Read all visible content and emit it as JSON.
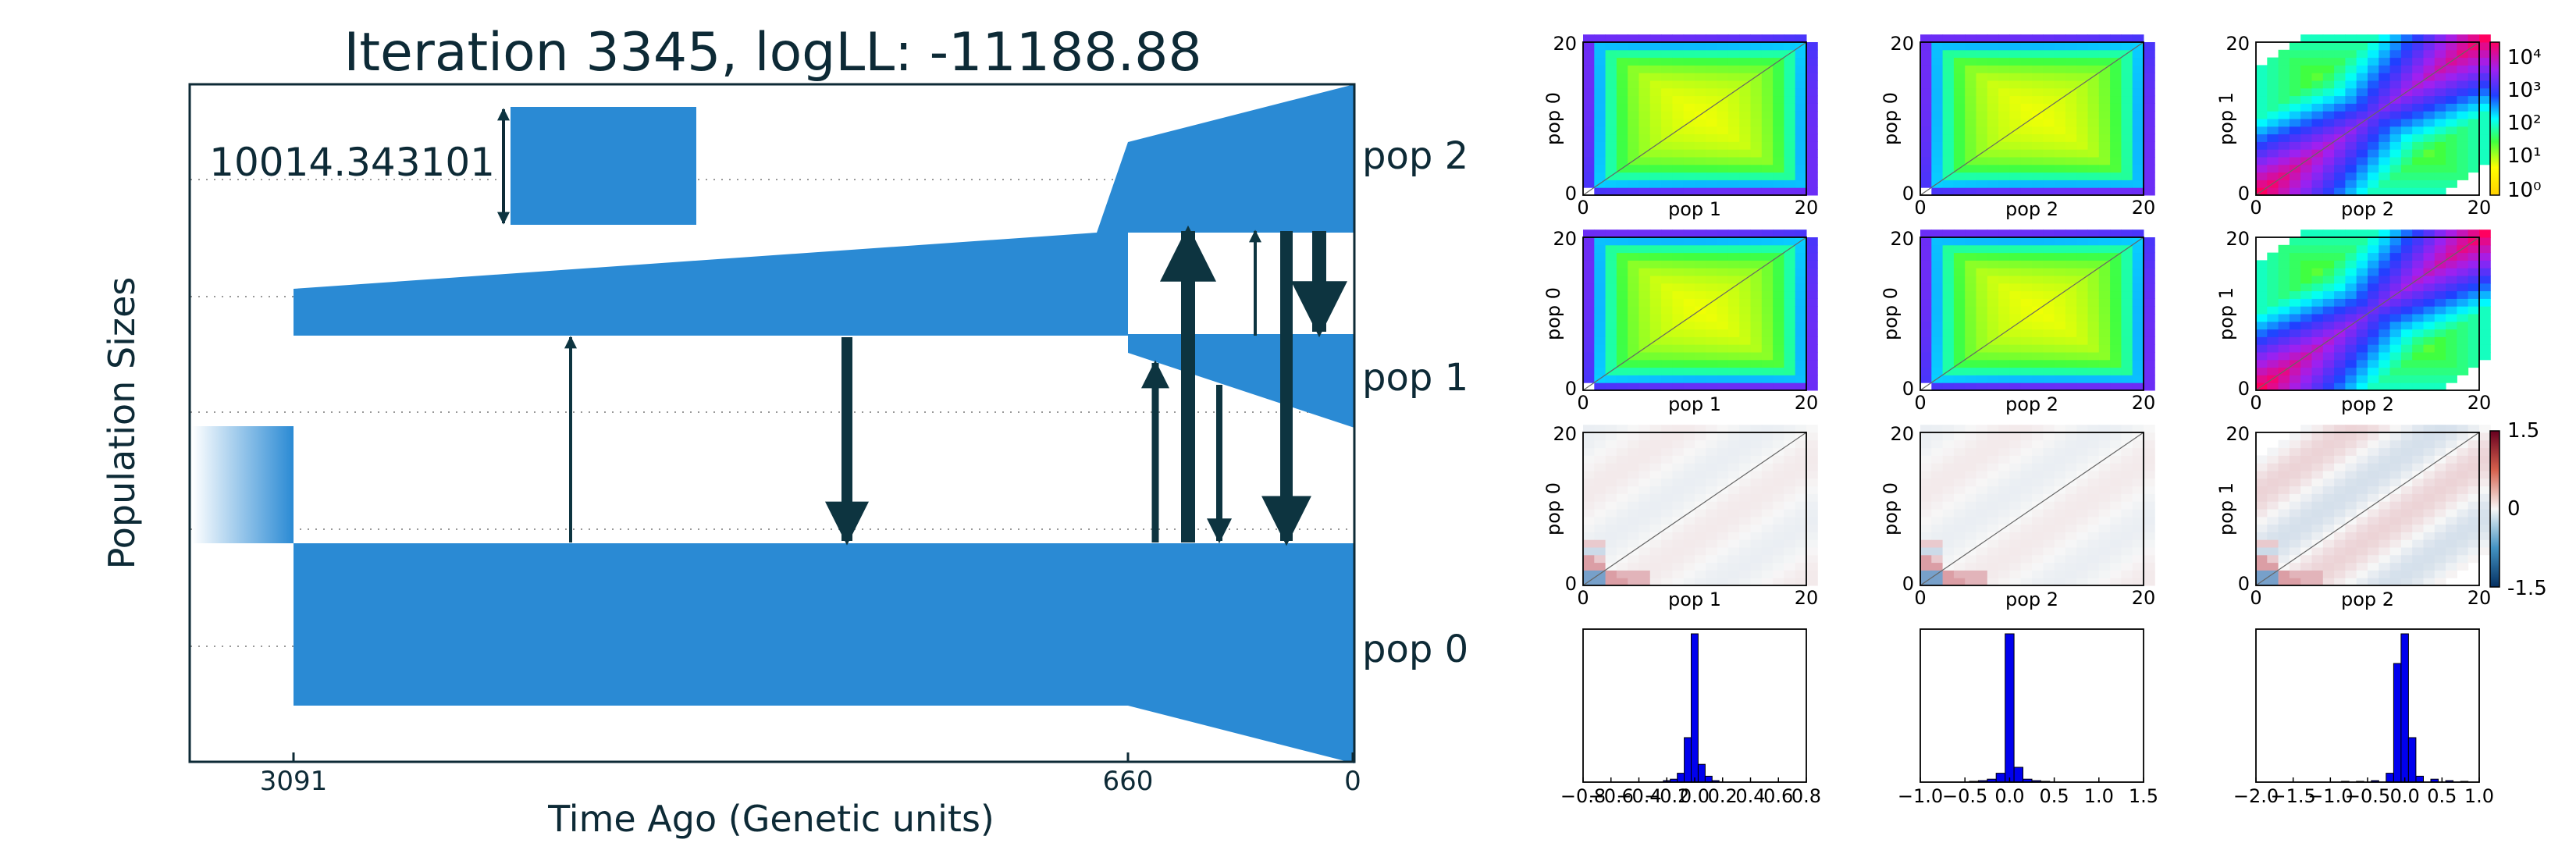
{
  "figure": {
    "title": "Iteration 3345, logLL:  -11188.88",
    "ylabel": "Population Sizes",
    "xlabel": "Time Ago (Genetic units)",
    "scale_label": "10014.343101",
    "xticks": [
      "3091",
      "660",
      "0"
    ],
    "pop_labels": [
      "pop 2",
      "pop 1",
      "pop 0"
    ]
  },
  "colors": {
    "pop_fill": "#2a8ad4",
    "arrow": "#0d3440",
    "text": "#0d2a36"
  },
  "chart_data": [
    {
      "type": "heatmap",
      "role": "demography model (population size through time, migration arrows)",
      "title": "Iteration 3345, logLL:  -11188.88",
      "xlabel": "Time Ago (Genetic units)",
      "ylabel": "Population Sizes",
      "x_ticks": [
        3091,
        660,
        0
      ],
      "size_scale_bar": 10014.343101,
      "populations": [
        "pop 2",
        "pop 1",
        "pop 0"
      ],
      "events": [
        {
          "time": 3091,
          "description": "split from ancestral population"
        },
        {
          "time": 660,
          "description": "split of pop 2 from pop 1"
        }
      ]
    },
    {
      "type": "heatmap",
      "role": "observed SFS",
      "panel": [
        0,
        0
      ],
      "xlabel": "pop 1",
      "ylabel": "pop 0",
      "xlim": [
        0,
        20
      ],
      "ylim": [
        0,
        20
      ],
      "color_scale": "log",
      "colorbar_ticks": [
        "10^0",
        "10^1",
        "10^2",
        "10^3",
        "10^4"
      ]
    },
    {
      "type": "heatmap",
      "role": "observed SFS",
      "panel": [
        0,
        1
      ],
      "xlabel": "pop 2",
      "ylabel": "pop 0",
      "xlim": [
        0,
        20
      ],
      "ylim": [
        0,
        20
      ]
    },
    {
      "type": "heatmap",
      "role": "observed SFS",
      "panel": [
        0,
        2
      ],
      "xlabel": "pop 2",
      "ylabel": "pop 1",
      "xlim": [
        0,
        20
      ],
      "ylim": [
        0,
        20
      ]
    },
    {
      "type": "heatmap",
      "role": "model SFS",
      "panel": [
        1,
        0
      ],
      "xlabel": "pop 1",
      "ylabel": "pop 0",
      "xlim": [
        0,
        20
      ],
      "ylim": [
        0,
        20
      ]
    },
    {
      "type": "heatmap",
      "role": "model SFS",
      "panel": [
        1,
        1
      ],
      "xlabel": "pop 2",
      "ylabel": "pop 0",
      "xlim": [
        0,
        20
      ],
      "ylim": [
        0,
        20
      ]
    },
    {
      "type": "heatmap",
      "role": "model SFS",
      "panel": [
        1,
        2
      ],
      "xlabel": "pop 2",
      "ylabel": "pop 1",
      "xlim": [
        0,
        20
      ],
      "ylim": [
        0,
        20
      ]
    },
    {
      "type": "heatmap",
      "role": "residuals",
      "panel": [
        2,
        0
      ],
      "xlabel": "pop 1",
      "ylabel": "pop 0",
      "xlim": [
        0,
        20
      ],
      "ylim": [
        0,
        20
      ],
      "color_range": [
        -1.5,
        1.5
      ],
      "colorbar_ticks": [
        "1.5",
        "0",
        "-1.5"
      ]
    },
    {
      "type": "heatmap",
      "role": "residuals",
      "panel": [
        2,
        1
      ],
      "xlabel": "pop 2",
      "ylabel": "pop 0",
      "xlim": [
        0,
        20
      ],
      "ylim": [
        0,
        20
      ]
    },
    {
      "type": "heatmap",
      "role": "residuals",
      "panel": [
        2,
        2
      ],
      "xlabel": "pop 2",
      "ylabel": "pop 1",
      "xlim": [
        0,
        20
      ],
      "ylim": [
        0,
        20
      ]
    },
    {
      "type": "bar",
      "role": "residual histogram",
      "panel": [
        3,
        0
      ],
      "xlim": [
        -0.8,
        0.8
      ],
      "x_ticks": [
        "−0.8",
        "−0.6",
        "−0.4",
        "−0.2",
        "0.0",
        "0.2",
        "0.4",
        "0.6",
        "0.8"
      ],
      "bins": [
        -0.2,
        -0.15,
        -0.1,
        -0.05,
        0.0,
        0.05,
        0.1,
        0.15
      ],
      "values": [
        0.01,
        0.02,
        0.06,
        0.3,
        1.0,
        0.12,
        0.04,
        0.01
      ]
    },
    {
      "type": "bar",
      "role": "residual histogram",
      "panel": [
        3,
        1
      ],
      "xlim": [
        -1.0,
        1.5
      ],
      "x_ticks": [
        "−1.0",
        "−0.5",
        "0.0",
        "0.5",
        "1.0",
        "1.5"
      ],
      "bins": [
        -0.4,
        -0.3,
        -0.2,
        -0.1,
        0.0,
        0.1,
        0.2,
        0.3,
        0.4
      ],
      "values": [
        0.005,
        0.01,
        0.02,
        0.06,
        1.0,
        0.1,
        0.02,
        0.01,
        0.005
      ]
    },
    {
      "type": "bar",
      "role": "residual histogram",
      "panel": [
        3,
        2
      ],
      "xlim": [
        -2.0,
        1.0
      ],
      "x_ticks": [
        "−2.0",
        "−1.5",
        "−1.0",
        "−0.5",
        "0.0",
        "0.5",
        "1.0"
      ],
      "bins": [
        -0.8,
        -0.6,
        -0.4,
        -0.2,
        -0.1,
        0.0,
        0.1,
        0.2,
        0.4,
        0.6,
        0.8
      ],
      "values": [
        0.005,
        0.005,
        0.01,
        0.06,
        0.8,
        1.0,
        0.3,
        0.04,
        0.02,
        0.01,
        0.005
      ]
    }
  ],
  "heat_labels": {
    "xlabels": [
      "pop 1",
      "pop 2",
      "pop 2",
      "pop 1",
      "pop 2",
      "pop 2",
      "pop 1",
      "pop 2",
      "pop 2"
    ],
    "ylabels": [
      "pop 0",
      "pop 0",
      "pop 1",
      "pop 0",
      "pop 0",
      "pop 1",
      "pop 0",
      "pop 0",
      "pop 1"
    ],
    "zero": "0",
    "twenty": "20"
  },
  "colorbar_log": {
    "ticks": [
      "10⁴",
      "10³",
      "10²",
      "10¹",
      "10⁰"
    ]
  },
  "colorbar_div": {
    "ticks": [
      "1.5",
      "0",
      "-1.5"
    ]
  }
}
